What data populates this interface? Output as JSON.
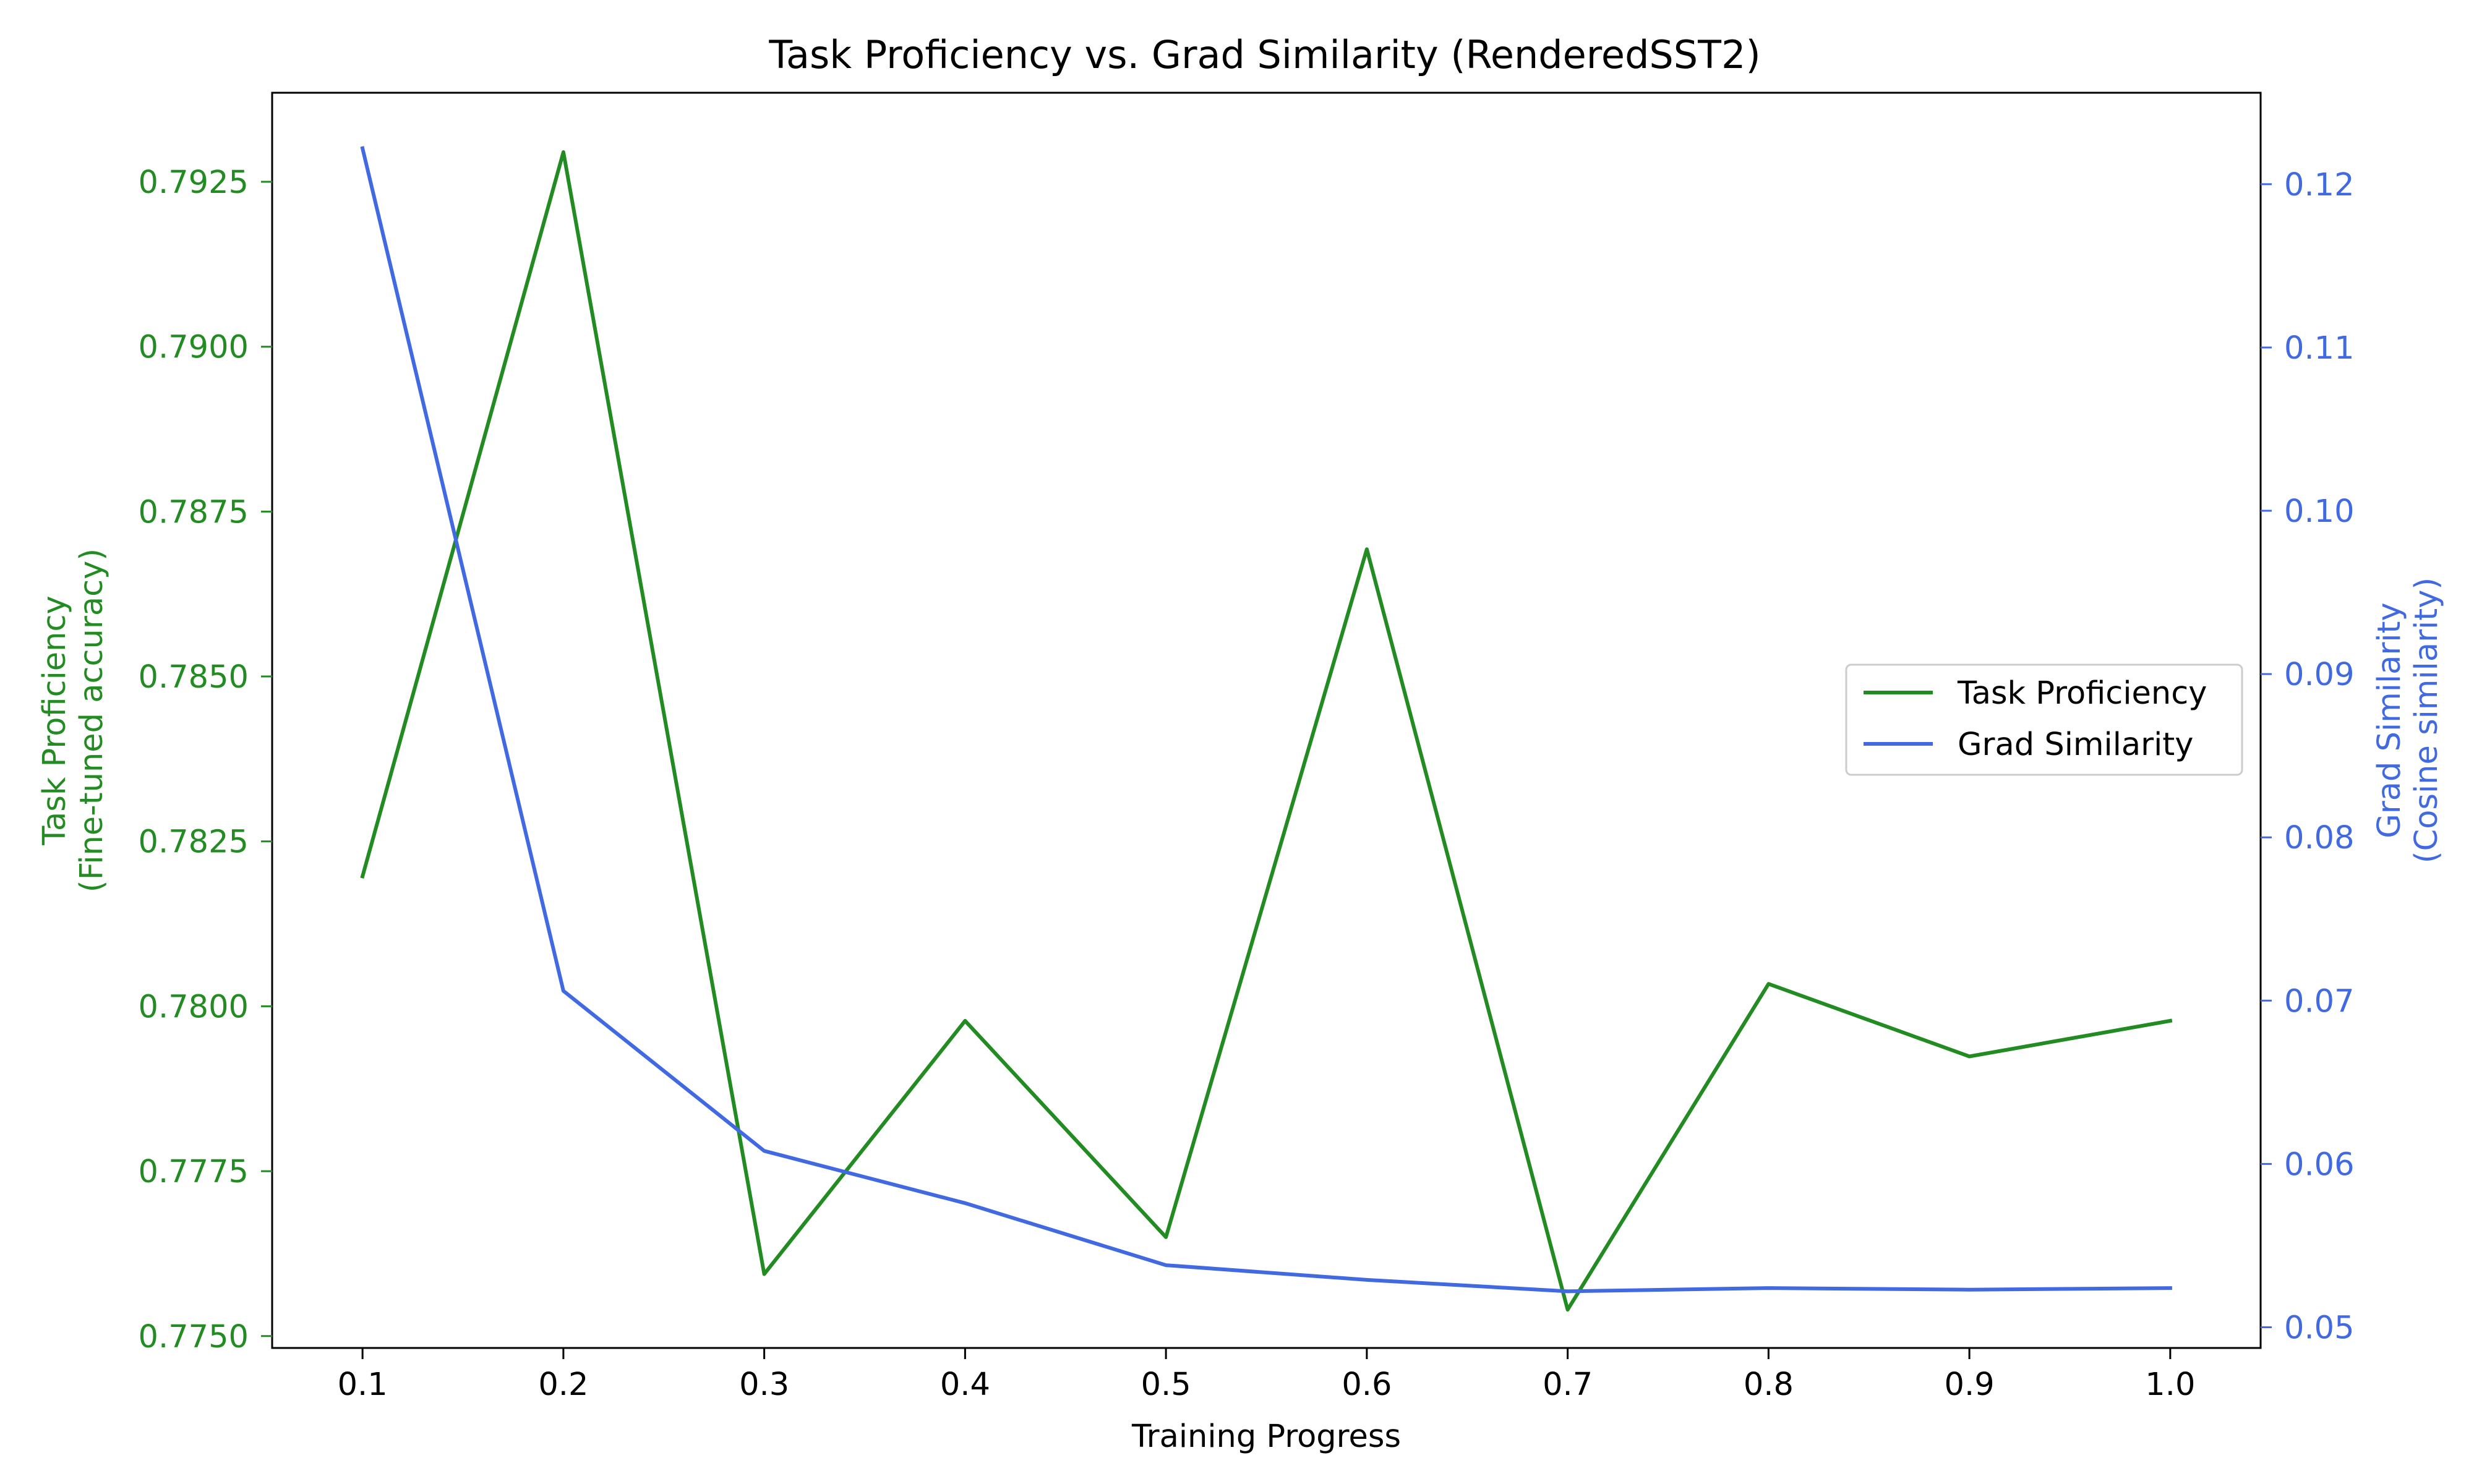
{
  "chart_data": {
    "type": "line",
    "title": "Task Proficiency vs. Grad Similarity (RenderedSST2)",
    "xlabel": "Training Progress",
    "ylabel_left": [
      "Task Proficiency",
      "(Fine-tuned accuracy)"
    ],
    "ylabel_right": [
      "Grad Similarity",
      "(Cosine similarity)"
    ],
    "x": [
      0.1,
      0.2,
      0.3,
      0.4,
      0.5,
      0.6,
      0.7,
      0.8,
      0.9,
      1.0
    ],
    "x_ticks": [
      "0.1",
      "0.2",
      "0.3",
      "0.4",
      "0.5",
      "0.6",
      "0.7",
      "0.8",
      "0.9",
      "1.0"
    ],
    "xlim": [
      0.055,
      1.045
    ],
    "y_left": {
      "lim": [
        0.77482,
        0.79385
      ],
      "ticks": [
        0.775,
        0.7775,
        0.78,
        0.7825,
        0.785,
        0.7875,
        0.79,
        0.7925
      ],
      "tick_labels": [
        "0.7750",
        "0.7775",
        "0.7800",
        "0.7825",
        "0.7850",
        "0.7875",
        "0.7900",
        "0.7925"
      ]
    },
    "y_right": {
      "lim": [
        0.04873,
        0.1256
      ],
      "ticks": [
        0.05,
        0.06,
        0.07,
        0.08,
        0.09,
        0.1,
        0.11,
        0.12
      ],
      "tick_labels": [
        "0.05",
        "0.06",
        "0.07",
        "0.08",
        "0.09",
        "0.10",
        "0.11",
        "0.12"
      ]
    },
    "series": [
      {
        "name": "Task Proficiency",
        "axis": "left",
        "color": "#228b22",
        "values": [
          0.78197,
          0.79295,
          0.77594,
          0.77978,
          0.7765,
          0.78693,
          0.7754,
          0.78034,
          0.77924,
          0.77978
        ]
      },
      {
        "name": "Grad Similarity",
        "axis": "right",
        "color": "#4169e1",
        "values": [
          0.1222,
          0.0706,
          0.0608,
          0.0576,
          0.0538,
          0.0529,
          0.0522,
          0.0524,
          0.0523,
          0.0524
        ]
      }
    ],
    "legend_position": "center-right",
    "grid": false,
    "left_axis_color": "#228b22",
    "right_axis_color": "#4169e1"
  }
}
